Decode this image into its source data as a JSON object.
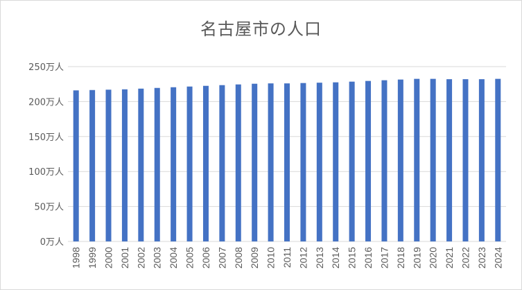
{
  "chart_data": {
    "type": "bar",
    "title": "名古屋市の人口",
    "xlabel": "",
    "ylabel": "",
    "categories": [
      "1998",
      "1999",
      "2000",
      "2001",
      "2002",
      "2003",
      "2004",
      "2005",
      "2006",
      "2007",
      "2008",
      "2009",
      "2010",
      "2011",
      "2012",
      "2013",
      "2014",
      "2015",
      "2016",
      "2017",
      "2018",
      "2019",
      "2020",
      "2021",
      "2022",
      "2023",
      "2024"
    ],
    "values": [
      216,
      216.5,
      217,
      217.5,
      218.5,
      219.5,
      220.5,
      221.5,
      222.5,
      223.5,
      224.5,
      225.5,
      226,
      226,
      226.5,
      227,
      227.5,
      228.5,
      229.5,
      230.5,
      231.5,
      232.5,
      232.5,
      232,
      232,
      232,
      232.5
    ],
    "unit_suffix": "万人",
    "y_ticks": [
      "0万人",
      "50万人",
      "100万人",
      "150万人",
      "200万人",
      "250万人"
    ],
    "ylim": [
      0,
      250
    ],
    "grid": true,
    "legend": "none",
    "bar_color": "#4472c4",
    "grid_color": "#d9d9d9"
  }
}
